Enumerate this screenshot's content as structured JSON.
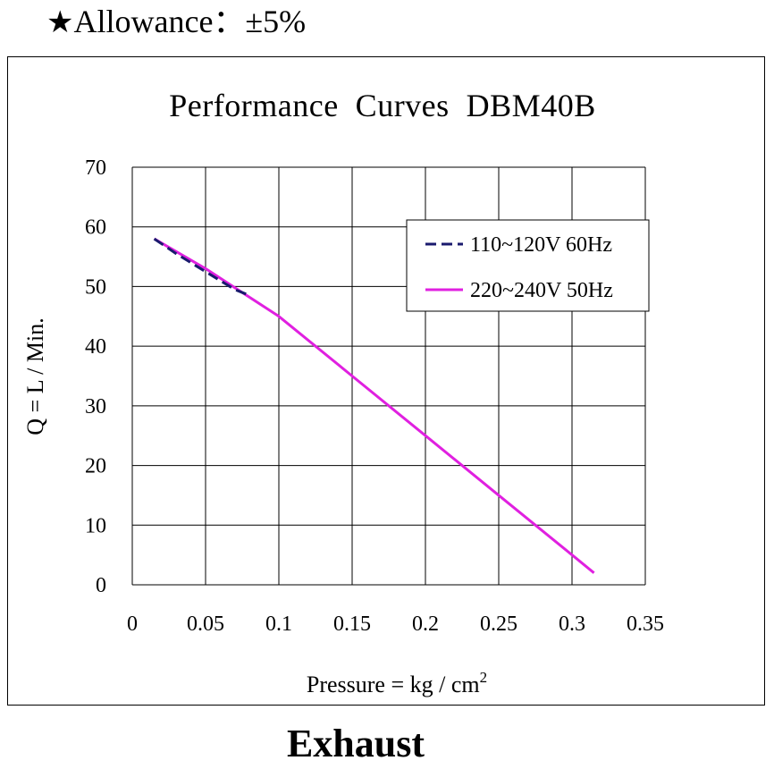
{
  "header": {
    "star": "★",
    "allowance": "Allowance：±5%"
  },
  "caption": "Exhaust",
  "chart_data": {
    "type": "line",
    "title": "Performance  Curves  DBM40B",
    "xlabel": "Pressure = kg / cm",
    "xlabel_superscript": "2",
    "ylabel": "Q = L / Min.",
    "xlim": [
      0,
      0.35
    ],
    "ylim": [
      0,
      70
    ],
    "x_ticks": [
      "0",
      "0.05",
      "0.1",
      "0.15",
      "0.2",
      "0.25",
      "0.3",
      "0.35"
    ],
    "y_ticks": [
      "0",
      "10",
      "20",
      "30",
      "40",
      "50",
      "60",
      "70"
    ],
    "grid": true,
    "legend_position": "top-right",
    "series": [
      {
        "name": "110~120V 60Hz",
        "color": "#1a1a6e",
        "style": "dashed",
        "points": [
          [
            0.015,
            58
          ],
          [
            0.03,
            55.5
          ],
          [
            0.05,
            52.5
          ],
          [
            0.07,
            49.5
          ],
          [
            0.08,
            48.5
          ]
        ]
      },
      {
        "name": "220~240V 50Hz",
        "color": "#e020e0",
        "style": "solid",
        "points": [
          [
            0.015,
            58
          ],
          [
            0.05,
            53
          ],
          [
            0.1,
            45
          ],
          [
            0.15,
            35
          ],
          [
            0.2,
            25
          ],
          [
            0.25,
            15
          ],
          [
            0.3,
            5
          ],
          [
            0.315,
            2
          ]
        ]
      }
    ]
  }
}
